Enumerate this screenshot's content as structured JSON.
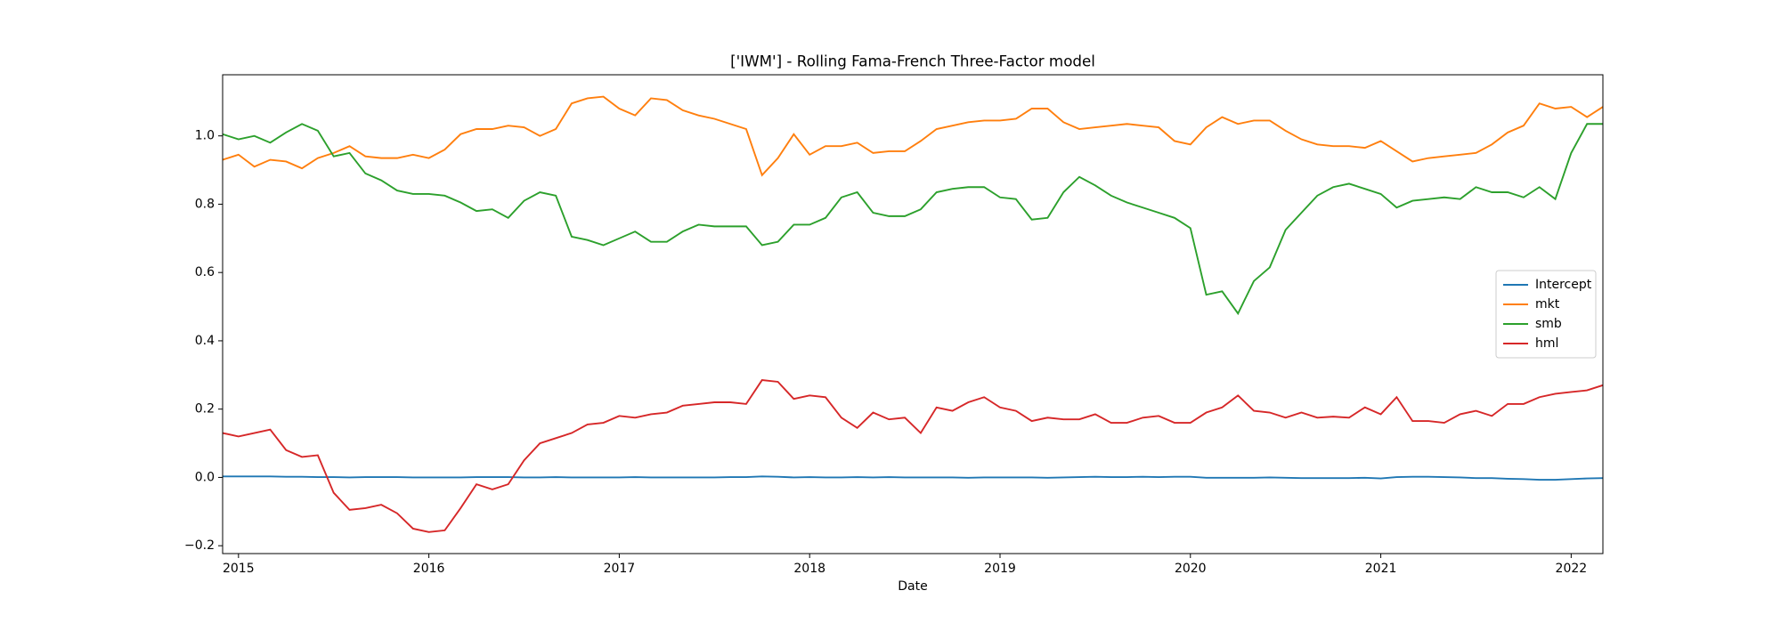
{
  "chart_data": {
    "type": "line",
    "title": "['IWM'] - Rolling Fama-French Three-Factor model",
    "xlabel": "Date",
    "x": [
      "2014-12",
      "2015-01",
      "2015-02",
      "2015-03",
      "2015-04",
      "2015-05",
      "2015-06",
      "2015-07",
      "2015-08",
      "2015-09",
      "2015-10",
      "2015-11",
      "2015-12",
      "2016-01",
      "2016-02",
      "2016-03",
      "2016-04",
      "2016-05",
      "2016-06",
      "2016-07",
      "2016-08",
      "2016-09",
      "2016-10",
      "2016-11",
      "2016-12",
      "2017-01",
      "2017-02",
      "2017-03",
      "2017-04",
      "2017-05",
      "2017-06",
      "2017-07",
      "2017-08",
      "2017-09",
      "2017-10",
      "2017-11",
      "2017-12",
      "2018-01",
      "2018-02",
      "2018-03",
      "2018-04",
      "2018-05",
      "2018-06",
      "2018-07",
      "2018-08",
      "2018-09",
      "2018-10",
      "2018-11",
      "2018-12",
      "2019-01",
      "2019-02",
      "2019-03",
      "2019-04",
      "2019-05",
      "2019-06",
      "2019-07",
      "2019-08",
      "2019-09",
      "2019-10",
      "2019-11",
      "2019-12",
      "2020-01",
      "2020-02",
      "2020-03",
      "2020-04",
      "2020-05",
      "2020-06",
      "2020-07",
      "2020-08",
      "2020-09",
      "2020-10",
      "2020-11",
      "2020-12",
      "2021-01",
      "2021-02",
      "2021-03",
      "2021-04",
      "2021-05",
      "2021-06",
      "2021-07",
      "2021-08",
      "2021-09",
      "2021-10",
      "2021-11",
      "2021-12",
      "2022-01",
      "2022-02",
      "2022-03"
    ],
    "series": [
      {
        "name": "Intercept",
        "color": "#1f77b4",
        "values": [
          0.003,
          0.003,
          0.003,
          0.003,
          0.002,
          0.002,
          0.001,
          0.001,
          0.0,
          0.001,
          0.001,
          0.001,
          0.0,
          0.0,
          0.0,
          0.0,
          0.001,
          0.001,
          0.001,
          0.0,
          0.0,
          0.001,
          0.0,
          0.0,
          0.0,
          0.0,
          0.001,
          0.0,
          0.0,
          0.0,
          0.0,
          0.0,
          0.001,
          0.001,
          0.003,
          0.002,
          0.0,
          0.001,
          0.0,
          0.0,
          0.001,
          0.0,
          0.001,
          0.0,
          0.0,
          0.0,
          0.0,
          -0.001,
          0.0,
          0.0,
          0.0,
          0.0,
          -0.001,
          0.0,
          0.001,
          0.002,
          0.001,
          0.001,
          0.002,
          0.001,
          0.002,
          0.002,
          -0.001,
          -0.001,
          -0.001,
          -0.001,
          0.0,
          -0.001,
          -0.002,
          -0.002,
          -0.002,
          -0.002,
          -0.001,
          -0.003,
          0.001,
          0.002,
          0.002,
          0.001,
          0.0,
          -0.002,
          -0.002,
          -0.004,
          -0.005,
          -0.007,
          -0.007,
          -0.005,
          -0.003,
          -0.002
        ]
      },
      {
        "name": "mkt",
        "color": "#ff7f0e",
        "values": [
          0.93,
          0.945,
          0.91,
          0.93,
          0.925,
          0.905,
          0.935,
          0.95,
          0.97,
          0.94,
          0.935,
          0.935,
          0.945,
          0.935,
          0.96,
          1.005,
          1.02,
          1.02,
          1.03,
          1.025,
          1.0,
          1.02,
          1.095,
          1.11,
          1.115,
          1.08,
          1.06,
          1.11,
          1.105,
          1.075,
          1.06,
          1.05,
          1.035,
          1.02,
          0.885,
          0.935,
          1.005,
          0.945,
          0.97,
          0.97,
          0.98,
          0.95,
          0.955,
          0.955,
          0.985,
          1.02,
          1.03,
          1.04,
          1.045,
          1.045,
          1.05,
          1.08,
          1.08,
          1.04,
          1.02,
          1.025,
          1.03,
          1.035,
          1.03,
          1.025,
          0.985,
          0.975,
          1.025,
          1.055,
          1.035,
          1.045,
          1.045,
          1.015,
          0.99,
          0.975,
          0.97,
          0.97,
          0.965,
          0.985,
          0.955,
          0.925,
          0.935,
          0.94,
          0.945,
          0.95,
          0.975,
          1.01,
          1.03,
          1.095,
          1.08,
          1.085,
          1.055,
          1.085
        ]
      },
      {
        "name": "smb",
        "color": "#2ca02c",
        "values": [
          1.005,
          0.99,
          1.0,
          0.98,
          1.01,
          1.035,
          1.015,
          0.94,
          0.95,
          0.89,
          0.87,
          0.84,
          0.83,
          0.83,
          0.825,
          0.805,
          0.78,
          0.785,
          0.76,
          0.81,
          0.835,
          0.825,
          0.705,
          0.695,
          0.68,
          0.7,
          0.72,
          0.69,
          0.69,
          0.72,
          0.74,
          0.735,
          0.735,
          0.735,
          0.68,
          0.69,
          0.74,
          0.74,
          0.76,
          0.82,
          0.835,
          0.775,
          0.765,
          0.765,
          0.785,
          0.835,
          0.845,
          0.85,
          0.85,
          0.82,
          0.815,
          0.755,
          0.76,
          0.835,
          0.88,
          0.855,
          0.825,
          0.805,
          0.79,
          0.775,
          0.76,
          0.73,
          0.535,
          0.545,
          0.48,
          0.575,
          0.615,
          0.725,
          0.775,
          0.825,
          0.85,
          0.86,
          0.845,
          0.83,
          0.79,
          0.81,
          0.815,
          0.82,
          0.815,
          0.85,
          0.835,
          0.835,
          0.82,
          0.85,
          0.815,
          0.95,
          1.035,
          1.035
        ]
      },
      {
        "name": "hml",
        "color": "#d62728",
        "values": [
          0.13,
          0.12,
          0.13,
          0.14,
          0.08,
          0.06,
          0.065,
          -0.045,
          -0.095,
          -0.09,
          -0.08,
          -0.105,
          -0.15,
          -0.16,
          -0.155,
          -0.09,
          -0.02,
          -0.035,
          -0.02,
          0.05,
          0.1,
          0.115,
          0.13,
          0.155,
          0.16,
          0.18,
          0.175,
          0.185,
          0.19,
          0.21,
          0.215,
          0.22,
          0.22,
          0.215,
          0.285,
          0.28,
          0.23,
          0.24,
          0.235,
          0.175,
          0.145,
          0.19,
          0.17,
          0.175,
          0.13,
          0.205,
          0.195,
          0.22,
          0.235,
          0.205,
          0.195,
          0.165,
          0.175,
          0.17,
          0.17,
          0.185,
          0.16,
          0.16,
          0.175,
          0.18,
          0.16,
          0.16,
          0.19,
          0.205,
          0.24,
          0.195,
          0.19,
          0.175,
          0.19,
          0.175,
          0.178,
          0.175,
          0.205,
          0.185,
          0.235,
          0.165,
          0.165,
          0.16,
          0.185,
          0.195,
          0.18,
          0.215,
          0.215,
          0.235,
          0.245,
          0.25,
          0.255,
          0.27
        ]
      }
    ],
    "xlim": [
      "2014-12",
      "2022-03"
    ],
    "xticks": [
      "2015",
      "2016",
      "2017",
      "2018",
      "2019",
      "2020",
      "2021",
      "2022"
    ],
    "ylim": [
      -0.223,
      1.179
    ],
    "yticks": [
      {
        "value": -0.2,
        "label": "−0.2"
      },
      {
        "value": 0,
        "label": "0.0"
      },
      0.2,
      0.4,
      0.6,
      0.8,
      {
        "value": 1,
        "label": "1.0"
      }
    ],
    "grid": false,
    "legend": "center right"
  }
}
